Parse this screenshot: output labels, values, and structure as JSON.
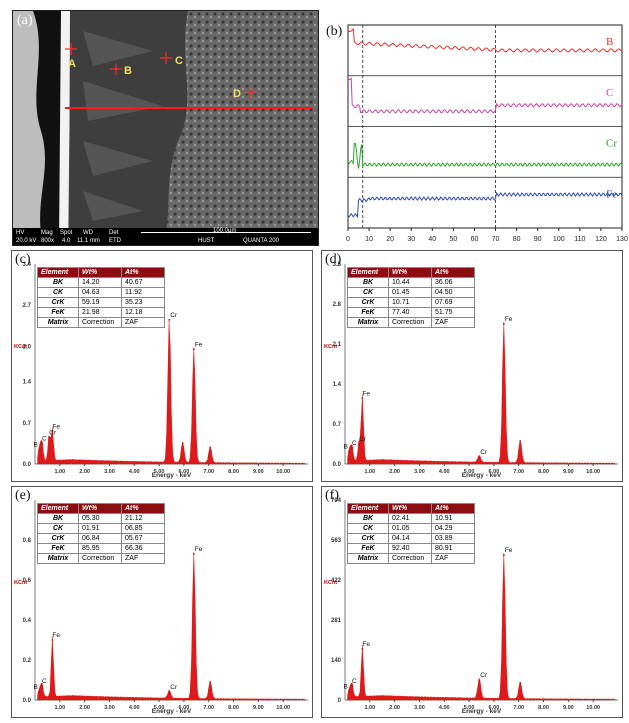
{
  "panel_a": {
    "label": "(a)",
    "points": [
      "A",
      "B",
      "C",
      "D"
    ],
    "footer": {
      "hv_h": "HV",
      "mag_h": "Mag",
      "spot_h": "Spot",
      "wd_h": "WD",
      "det_h": "Det",
      "hv": "20.0 kV",
      "mag": "800x",
      "spot": "4.0",
      "wd": "11.1 mm",
      "det": "ETD",
      "scale": "100.0µm",
      "lab": "HUST",
      "instrument": "QUANTA 200"
    }
  },
  "panel_b": {
    "label": "(b)",
    "x_ticks": [
      "0",
      "10",
      "20",
      "30",
      "40",
      "50",
      "60",
      "70",
      "80",
      "90",
      "100",
      "110",
      "120",
      "130"
    ],
    "traces": [
      {
        "name": "B",
        "color": "#e8322f"
      },
      {
        "name": "C",
        "color": "#cc44aa"
      },
      {
        "name": "Cr",
        "color": "#2aa52a"
      },
      {
        "name": "Fe",
        "color": "#2a4db0"
      }
    ],
    "dashed_x": [
      7,
      70
    ]
  },
  "eds_common": {
    "xlabel": "Energy - keV",
    "ylabel": "KCnt",
    "x_ticks": [
      "1.00",
      "2.00",
      "3.00",
      "4.00",
      "5.00",
      "6.00",
      "7.00",
      "8.00",
      "9.00",
      "10.00"
    ],
    "col_element": "Element",
    "col_wt": "Wt%",
    "col_at": "At%",
    "matrix_label": "Matrix",
    "matrix_wt": "Correction",
    "matrix_at": "ZAF"
  },
  "chart_data": [
    {
      "type": "table",
      "panel": "(c)",
      "rows": [
        [
          "BK",
          "14.20",
          "40.67"
        ],
        [
          "CK",
          "04.63",
          "11.92"
        ],
        [
          "CrK",
          "59.19",
          "35.23"
        ],
        [
          "FeK",
          "21.98",
          "12.18"
        ]
      ],
      "y_ticks": [
        "0.0",
        "0.7",
        "1.4",
        "2.0",
        "2.7",
        "3.4"
      ],
      "ylim": [
        0,
        3.4
      ],
      "peaks": [
        {
          "e": 0.18,
          "h": 0.25,
          "label": "B"
        },
        {
          "e": 0.28,
          "h": 0.35,
          "label": "C"
        },
        {
          "e": 0.57,
          "h": 0.45,
          "label": "Cr"
        },
        {
          "e": 0.7,
          "h": 0.55,
          "label": "Fe"
        },
        {
          "e": 5.41,
          "h": 2.45,
          "label": "Cr"
        },
        {
          "e": 5.95,
          "h": 0.35
        },
        {
          "e": 6.4,
          "h": 1.95,
          "label": "Fe"
        },
        {
          "e": 7.06,
          "h": 0.28
        }
      ]
    },
    {
      "type": "table",
      "panel": "(d)",
      "rows": [
        [
          "BK",
          "10.44",
          "36.06"
        ],
        [
          "CK",
          "01.45",
          "04.50"
        ],
        [
          "CrK",
          "10.71",
          "07.69"
        ],
        [
          "FeK",
          "77.40",
          "51.75"
        ]
      ],
      "y_ticks": [
        "0.0",
        "0.7",
        "1.4",
        "2.1",
        "2.8",
        "3.5"
      ],
      "ylim": [
        0,
        3.5
      ],
      "peaks": [
        {
          "e": 0.18,
          "h": 0.22,
          "label": "B"
        },
        {
          "e": 0.28,
          "h": 0.28,
          "label": "C"
        },
        {
          "e": 0.57,
          "h": 0.35,
          "label": "Cr"
        },
        {
          "e": 0.7,
          "h": 1.15,
          "label": "Fe"
        },
        {
          "e": 5.41,
          "h": 0.12,
          "label": "Cr"
        },
        {
          "e": 6.4,
          "h": 2.45,
          "label": "Fe"
        },
        {
          "e": 7.06,
          "h": 0.4
        }
      ]
    },
    {
      "type": "table",
      "panel": "(e)",
      "rows": [
        [
          "BK",
          "05.30",
          "21.12"
        ],
        [
          "CK",
          "01.91",
          "06.85"
        ],
        [
          "CrK",
          "06.84",
          "05.67"
        ],
        [
          "FeK",
          "85.95",
          "66.36"
        ]
      ],
      "y_ticks": [
        "0.0",
        "0.2",
        "0.4",
        "0.6",
        "0.8"
      ],
      "ylim": [
        0,
        1.0
      ],
      "peaks": [
        {
          "e": 0.18,
          "h": 0.04,
          "label": "B"
        },
        {
          "e": 0.28,
          "h": 0.07,
          "label": "C"
        },
        {
          "e": 0.7,
          "h": 0.3,
          "label": "Fe"
        },
        {
          "e": 5.41,
          "h": 0.04,
          "label": "Cr"
        },
        {
          "e": 6.4,
          "h": 0.73,
          "label": "Fe"
        },
        {
          "e": 7.06,
          "h": 0.09
        }
      ]
    },
    {
      "type": "table",
      "panel": "(f)",
      "rows": [
        [
          "BK",
          "02.41",
          "10.91"
        ],
        [
          "CK",
          "01.05",
          "04.29"
        ],
        [
          "CrK",
          "04.14",
          "03.89"
        ],
        [
          "FeK",
          "92.40",
          "80.91"
        ]
      ],
      "y_ticks": [
        "0",
        "140",
        "281",
        "422",
        "563",
        "704"
      ],
      "ylim": [
        0,
        704
      ],
      "peaks": [
        {
          "e": 0.18,
          "h": 30,
          "label": "B"
        },
        {
          "e": 0.28,
          "h": 50,
          "label": "C"
        },
        {
          "e": 0.7,
          "h": 180,
          "label": "Fe"
        },
        {
          "e": 5.41,
          "h": 70,
          "label": "Cr"
        },
        {
          "e": 6.4,
          "h": 510,
          "label": "Fe"
        },
        {
          "e": 7.06,
          "h": 60
        }
      ]
    }
  ],
  "eds_labels": {
    "c": "(c)",
    "d": "(d)",
    "e": "(e)",
    "f": "(f)"
  }
}
